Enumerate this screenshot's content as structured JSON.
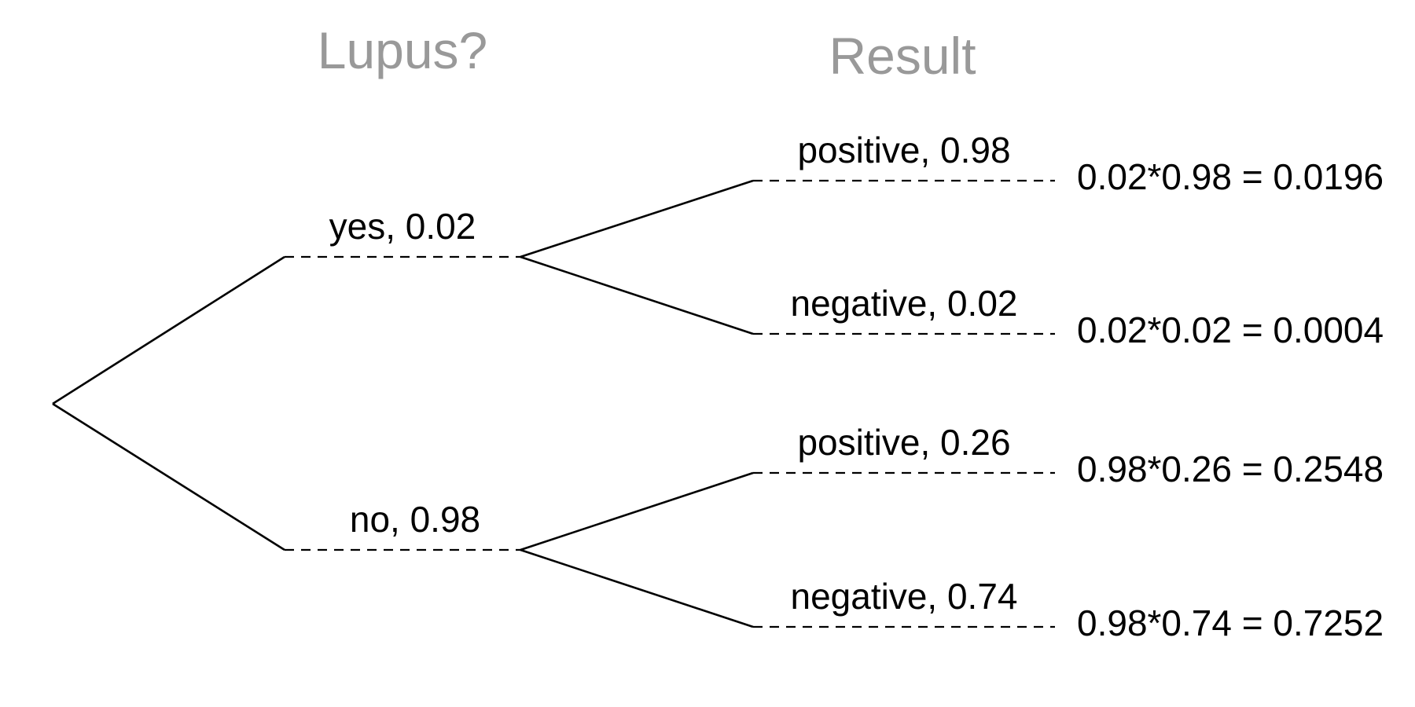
{
  "headers": {
    "lupus": "Lupus?",
    "result": "Result"
  },
  "level1": [
    {
      "label": "yes,  0.02"
    },
    {
      "label": "no,  0.98"
    }
  ],
  "level2": [
    {
      "label": "positive,  0.98",
      "joint": "0.02*0.98 = 0.0196"
    },
    {
      "label": "negative,  0.02",
      "joint": "0.02*0.02 = 0.0004"
    },
    {
      "label": "positive,  0.26",
      "joint": "0.98*0.26 = 0.2548"
    },
    {
      "label": "negative,  0.74",
      "joint": "0.98*0.74 = 0.7252"
    }
  ]
}
